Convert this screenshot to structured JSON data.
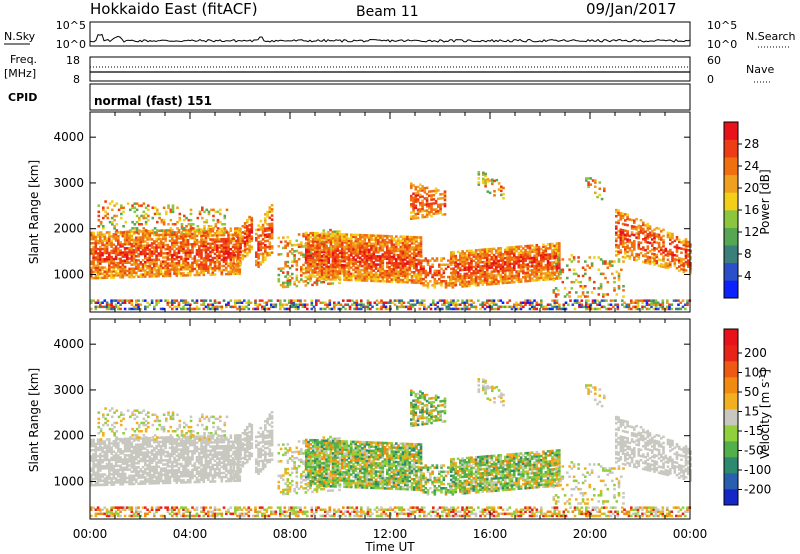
{
  "header": {
    "title": "Hokkaido East (fitACF)",
    "beam": "Beam 11",
    "date": "09/Jan/2017"
  },
  "status_panels": {
    "nsky_label": "N.Sky",
    "nsky_ticks": [
      "10^5",
      "10^0"
    ],
    "nsearch_label": "N.Search",
    "nsearch_ticks": [
      "10^5",
      "10^0"
    ],
    "freq_label": "Freq.",
    "freq_unit": "[MHz]",
    "freq_ticks": [
      "18",
      "8"
    ],
    "nave_label": "Nave",
    "nave_ticks": [
      "60",
      "0"
    ],
    "cpid_label": "CPID",
    "cpid_value": "normal (fast) 151"
  },
  "chart_data": [
    {
      "type": "heatmap",
      "title": "",
      "quantity": "Power",
      "ylabel": "Slant Range [km]",
      "xlabel": "",
      "xlim": [
        "00:00",
        "24:00"
      ],
      "ylim": [
        180,
        4550
      ],
      "y_ticks": [
        1000,
        2000,
        3000,
        4000
      ],
      "colorbar_label": "Power [dB]",
      "colorbar_ticks": [
        "4",
        "8",
        "12",
        "16",
        "20",
        "24",
        "28"
      ],
      "colorbar_range": [
        0,
        32
      ],
      "colorbar_colors": [
        "#0b22ff",
        "#2a4fc8",
        "#3a7f7a",
        "#56a653",
        "#8cc63f",
        "#f2d018",
        "#f0a020",
        "#f07010",
        "#ee3c14",
        "#e8121a"
      ]
    },
    {
      "type": "heatmap",
      "title": "",
      "quantity": "Velocity",
      "ylabel": "Slant Range [km]",
      "xlabel": "Time UT",
      "xlim": [
        "00:00",
        "24:00"
      ],
      "ylim": [
        180,
        4550
      ],
      "y_ticks": [
        1000,
        2000,
        3000,
        4000
      ],
      "x_ticks": [
        "00:00",
        "04:00",
        "08:00",
        "12:00",
        "16:00",
        "20:00",
        "00:00"
      ],
      "colorbar_label": "Velocity [m s^-1]",
      "colorbar_ticks": [
        "200",
        "100",
        "50",
        "15",
        "-15",
        "-50",
        "-100",
        "-200"
      ],
      "colorbar_colors": [
        "#1428c8",
        "#2a5fb0",
        "#2e8a6e",
        "#52b04a",
        "#8fd03c",
        "#c8c8c0",
        "#f0b020",
        "#f08a10",
        "#ee5a12",
        "#e82418",
        "#e8121a"
      ]
    }
  ]
}
